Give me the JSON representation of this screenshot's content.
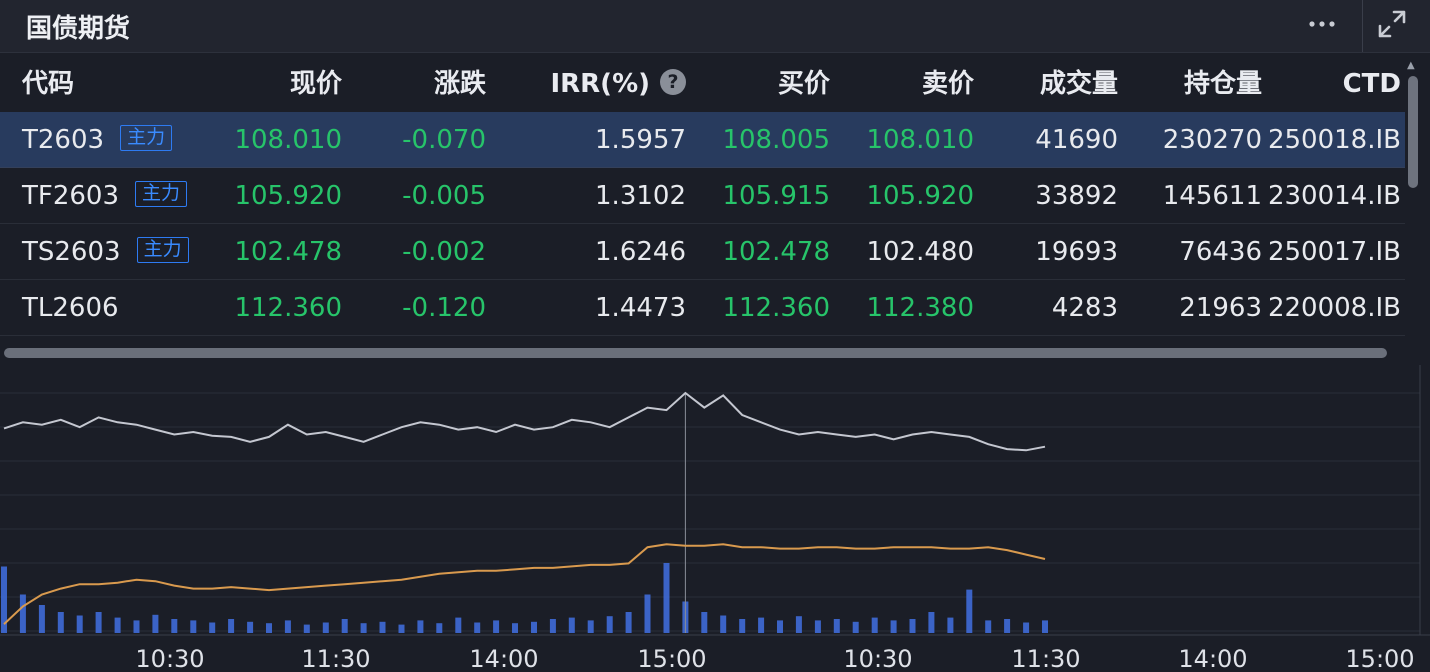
{
  "header": {
    "title": "国债期货",
    "more_icon": "ellipsis-icon",
    "expand_icon": "expand-icon"
  },
  "table": {
    "columns": [
      "代码",
      "现价",
      "涨跌",
      "IRR(%)",
      "买价",
      "卖价",
      "成交量",
      "持仓量",
      "CTD"
    ],
    "help_icon_text": "?",
    "rows": [
      {
        "code": "T2603",
        "tag": "主力",
        "price": "108.010",
        "change": "-0.070",
        "irr": "1.5957",
        "bid": "108.005",
        "ask": "108.010",
        "volume": "41690",
        "oi": "230270",
        "ctd": "250018.IB"
      },
      {
        "code": "TF2603",
        "tag": "主力",
        "price": "105.920",
        "change": "-0.005",
        "irr": "1.3102",
        "bid": "105.915",
        "ask": "105.920",
        "volume": "33892",
        "oi": "145611",
        "ctd": "230014.IB"
      },
      {
        "code": "TS2603",
        "tag": "主力",
        "price": "102.478",
        "change": "-0.002",
        "irr": "1.6246",
        "bid": "102.478",
        "ask": "102.480",
        "volume": "19693",
        "oi": "76436",
        "ctd": "250017.IB"
      },
      {
        "code": "TL2606",
        "tag": "",
        "price": "112.360",
        "change": "-0.120",
        "irr": "1.4473",
        "bid": "112.360",
        "ask": "112.380",
        "volume": "4283",
        "oi": "21963",
        "ctd": "220008.IB"
      }
    ]
  },
  "colors": {
    "up_down_green": "#27c46a",
    "selected_row": "#283b5e",
    "tag_blue": "#2e7bf2",
    "price_line": "#c4c7d0",
    "avg_line": "#d99a4e",
    "volume_bar": "#3f6ad8"
  },
  "chart_data": {
    "type": "line",
    "x_tick_labels": [
      "10:30",
      "11:30",
      "14:00",
      "15:00",
      "10:30",
      "11:30",
      "14:00",
      "15:00"
    ],
    "series": [
      {
        "values": [
          0.71,
          0.76,
          0.74,
          0.78,
          0.72,
          0.8,
          0.76,
          0.74,
          0.7,
          0.66,
          0.68,
          0.65,
          0.64,
          0.6,
          0.64,
          0.74,
          0.66,
          0.68,
          0.64,
          0.6,
          0.66,
          0.72,
          0.76,
          0.74,
          0.7,
          0.72,
          0.68,
          0.74,
          0.7,
          0.72,
          0.78,
          0.76,
          0.72,
          0.8,
          0.88,
          0.86,
          1.0,
          0.88,
          0.98,
          0.82,
          0.76,
          0.7,
          0.66,
          0.68,
          0.66,
          0.64,
          0.66,
          0.62,
          0.66,
          0.68,
          0.66,
          0.64,
          0.58,
          0.54,
          0.53,
          0.56
        ]
      },
      {
        "values": [
          0.06,
          0.18,
          0.26,
          0.3,
          0.33,
          0.33,
          0.34,
          0.36,
          0.35,
          0.32,
          0.3,
          0.3,
          0.31,
          0.3,
          0.29,
          0.3,
          0.31,
          0.32,
          0.33,
          0.34,
          0.35,
          0.36,
          0.38,
          0.4,
          0.41,
          0.42,
          0.42,
          0.43,
          0.44,
          0.44,
          0.45,
          0.46,
          0.46,
          0.47,
          0.58,
          0.6,
          0.59,
          0.59,
          0.6,
          0.58,
          0.58,
          0.57,
          0.57,
          0.58,
          0.58,
          0.57,
          0.57,
          0.58,
          0.58,
          0.58,
          0.57,
          0.57,
          0.58,
          0.56,
          0.53,
          0.5
        ]
      }
    ],
    "volume": [
      0.95,
      0.55,
      0.4,
      0.3,
      0.25,
      0.3,
      0.22,
      0.18,
      0.26,
      0.2,
      0.18,
      0.15,
      0.2,
      0.16,
      0.14,
      0.18,
      0.12,
      0.15,
      0.2,
      0.14,
      0.16,
      0.12,
      0.18,
      0.14,
      0.22,
      0.15,
      0.18,
      0.14,
      0.16,
      0.2,
      0.22,
      0.18,
      0.24,
      0.3,
      0.55,
      1.0,
      0.45,
      0.3,
      0.25,
      0.2,
      0.22,
      0.18,
      0.24,
      0.18,
      0.2,
      0.16,
      0.22,
      0.18,
      0.2,
      0.3,
      0.22,
      0.62,
      0.18,
      0.2,
      0.15,
      0.18
    ],
    "grid": true
  }
}
